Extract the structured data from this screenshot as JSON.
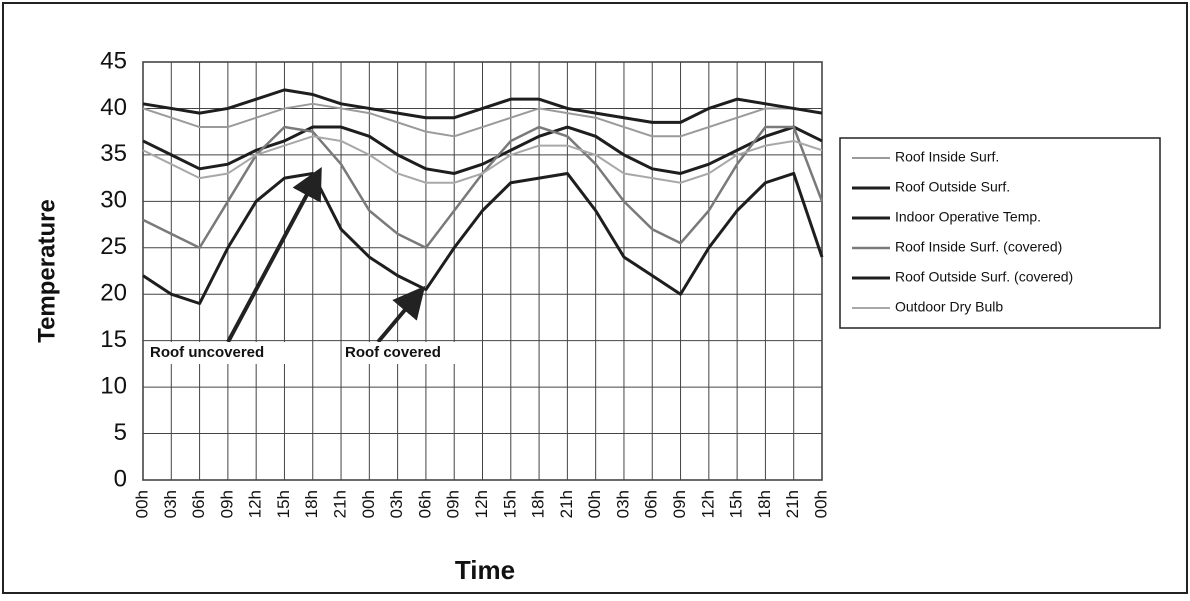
{
  "chart_data": {
    "type": "line",
    "x_label": "Time",
    "y_label": "Temperature",
    "categories": [
      "00h",
      "03h",
      "06h",
      "09h",
      "12h",
      "15h",
      "18h",
      "21h",
      "00h",
      "03h",
      "06h",
      "09h",
      "12h",
      "15h",
      "18h",
      "21h",
      "00h",
      "03h",
      "06h",
      "09h",
      "12h",
      "15h",
      "18h",
      "21h",
      "00h"
    ],
    "series": [
      {
        "name": "Roof Inside Surf.",
        "color": "#9a9a9a",
        "width": 2,
        "values": [
          40,
          39,
          38,
          38,
          39,
          40,
          40.5,
          40,
          39.5,
          38.5,
          37.5,
          37,
          38,
          39,
          40,
          39.5,
          39,
          38,
          37,
          37,
          38,
          39,
          40,
          40,
          39.5
        ]
      },
      {
        "name": "Roof Outside Surf.",
        "color": "#1e1e1e",
        "width": 3,
        "values": [
          40.5,
          40,
          39.5,
          40,
          41,
          42,
          41.5,
          40.5,
          40,
          39.5,
          39,
          39,
          40,
          41,
          41,
          40,
          39.5,
          39,
          38.5,
          38.5,
          40,
          41,
          40.5,
          40,
          39.5
        ]
      },
      {
        "name": "Indoor Operative Temp.",
        "color": "#1e1e1e",
        "width": 3,
        "values": [
          36.5,
          35,
          33.5,
          34,
          35.5,
          36.5,
          38,
          38,
          37,
          35,
          33.5,
          33,
          34,
          35.5,
          37,
          38,
          37,
          35,
          33.5,
          33,
          34,
          35.5,
          37,
          38,
          36.5
        ]
      },
      {
        "name": "Roof Inside Surf. (covered)",
        "color": "#7a7a7a",
        "width": 2.5,
        "values": [
          28,
          26.5,
          25,
          30,
          35,
          38,
          37.5,
          34,
          29,
          26.5,
          25,
          29,
          33,
          36.5,
          38,
          37,
          34,
          30,
          27,
          25.5,
          29,
          34,
          38,
          38,
          30
        ]
      },
      {
        "name": "Roof Outside Surf. (covered)",
        "color": "#1e1e1e",
        "width": 3,
        "values": [
          22,
          20,
          19,
          25,
          30,
          32.5,
          33,
          27,
          24,
          22,
          20.5,
          25,
          29,
          32,
          32.5,
          33,
          29,
          24,
          22,
          20,
          25,
          29,
          32,
          33,
          24
        ]
      },
      {
        "name": "Outdoor Dry Bulb",
        "color": "#a8a8a8",
        "width": 2,
        "values": [
          35.5,
          34,
          32.5,
          33,
          35,
          36,
          37,
          36.5,
          35,
          33,
          32,
          32,
          33,
          35,
          36,
          36,
          35,
          33,
          32.5,
          32,
          33,
          35,
          36,
          36.5,
          35.5
        ]
      }
    ],
    "ylim": [
      0,
      45
    ],
    "yticks": [
      0,
      5,
      10,
      15,
      20,
      25,
      30,
      35,
      40,
      45
    ],
    "grid": true,
    "annotations": [
      "Roof uncovered",
      "Roof covered"
    ]
  }
}
